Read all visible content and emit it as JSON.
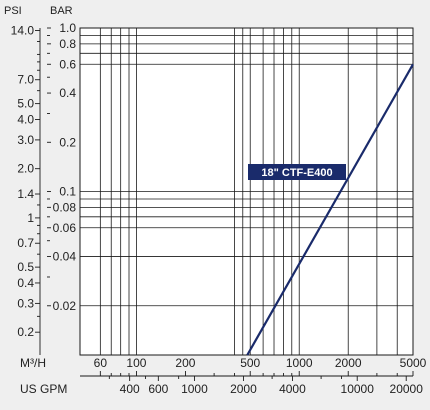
{
  "chart_data": {
    "type": "line",
    "title": "",
    "log_scale": {
      "x": true,
      "y": true
    },
    "grid": true,
    "axes": {
      "left_outer": {
        "label": "PSI",
        "ticks": [
          "14.0",
          "7.0",
          "5.0",
          "4.0",
          "3.0",
          "2.0",
          "1.4",
          "1",
          "0.7",
          "0.5",
          "0.4",
          "0.3",
          "0.2"
        ]
      },
      "left_inner": {
        "label": "BAR",
        "ticks": [
          "1.0",
          "0.8",
          "0.6",
          "0.4",
          "0.2",
          "0.1",
          "0.08",
          "0.06",
          "0.04",
          "0.02"
        ]
      },
      "bottom_upper": {
        "label": "M³/H",
        "ticks": [
          "60",
          "100",
          "200",
          "500",
          "1000",
          "2000",
          "5000"
        ]
      },
      "bottom_lower": {
        "label": "US GPM",
        "ticks": [
          "400",
          "600",
          "1000",
          "2000",
          "4000",
          "10000",
          "20000"
        ]
      }
    },
    "bar_range": [
      0.01,
      1.0
    ],
    "m3h_range": [
      45,
      5000
    ],
    "series": [
      {
        "name": "18\" CTF-E400",
        "color": "#1a2b6b",
        "x_m3h": [
          480,
          5000
        ],
        "y_bar": [
          0.01,
          0.6
        ]
      }
    ]
  }
}
